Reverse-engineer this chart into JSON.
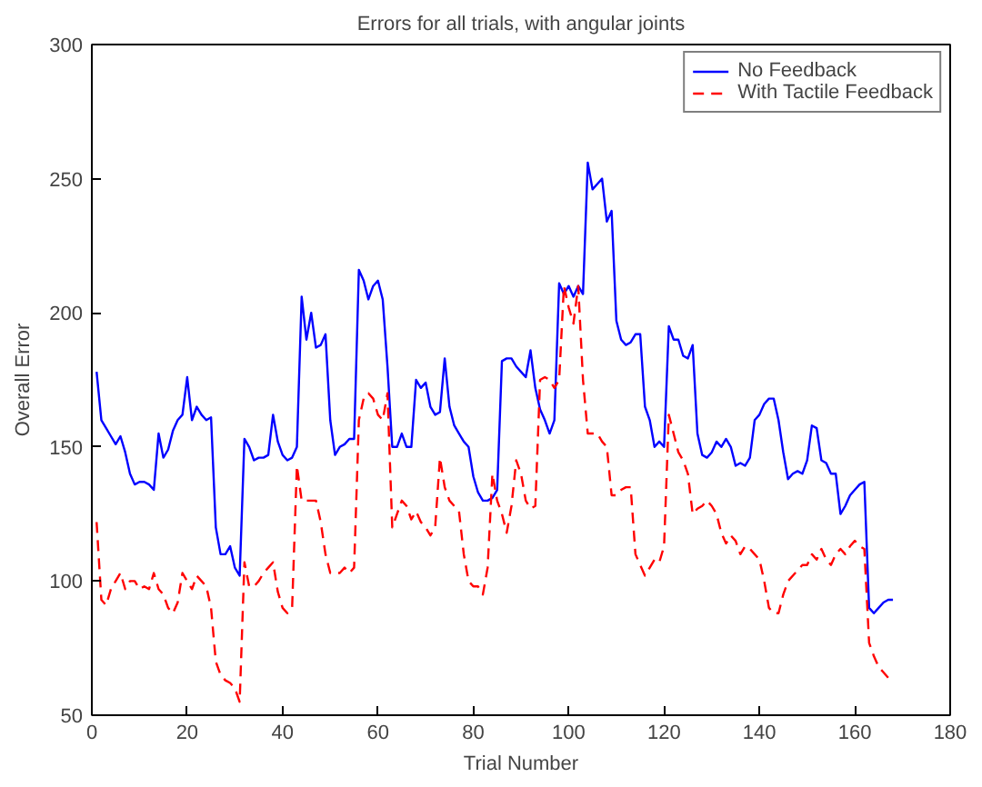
{
  "chart_data": {
    "type": "line",
    "title": "Errors for all trials, with angular joints",
    "xlabel": "Trial Number",
    "ylabel": "Overall Error",
    "x": [
      1,
      2,
      3,
      4,
      5,
      6,
      7,
      8,
      9,
      10,
      11,
      12,
      13,
      14,
      15,
      16,
      17,
      18,
      19,
      20,
      21,
      22,
      23,
      24,
      25,
      26,
      27,
      28,
      29,
      30,
      31,
      32,
      33,
      34,
      35,
      36,
      37,
      38,
      39,
      40,
      41,
      42,
      43,
      44,
      45,
      46,
      47,
      48,
      49,
      50,
      51,
      52,
      53,
      54,
      55,
      56,
      57,
      58,
      59,
      60,
      61,
      62,
      63,
      64,
      65,
      66,
      67,
      68,
      69,
      70,
      71,
      72,
      73,
      74,
      75,
      76,
      77,
      78,
      79,
      80,
      81,
      82,
      83,
      84,
      85,
      86,
      87,
      88,
      89,
      90,
      91,
      92,
      93,
      94,
      95,
      96,
      97,
      98,
      99,
      100,
      101,
      102,
      103,
      104,
      105,
      106,
      107,
      108,
      109,
      110,
      111,
      112,
      113,
      114,
      115,
      116,
      117,
      118,
      119,
      120,
      121,
      122,
      123,
      124,
      125,
      126,
      127,
      128,
      129,
      130,
      131,
      132,
      133,
      134,
      135,
      136,
      137,
      138,
      139,
      140,
      141,
      142,
      143,
      144,
      145,
      146,
      147,
      148,
      149,
      150,
      151,
      152,
      153,
      154,
      155,
      156,
      157,
      158,
      159,
      160,
      161,
      162,
      163,
      164,
      165,
      166,
      167,
      168
    ],
    "series": [
      {
        "name": "No Feedback",
        "color": "#0000ff",
        "line_style": "solid",
        "values": [
          178,
          160,
          157,
          154,
          151,
          154,
          148,
          140,
          136,
          137,
          137,
          136,
          134,
          155,
          146,
          149,
          156,
          160,
          162,
          176,
          160,
          165,
          162,
          160,
          161,
          120,
          110,
          110,
          113,
          105,
          102,
          153,
          150,
          145,
          146,
          146,
          147,
          162,
          152,
          147,
          145,
          146,
          150,
          206,
          190,
          200,
          187,
          188,
          192,
          160,
          147,
          150,
          151,
          153,
          153,
          216,
          212,
          205,
          210,
          212,
          205,
          180,
          150,
          150,
          155,
          150,
          150,
          175,
          172,
          174,
          165,
          162,
          163,
          183,
          165,
          158,
          155,
          152,
          150,
          139,
          133,
          130,
          130,
          131,
          134,
          182,
          183,
          183,
          180,
          178,
          176,
          186,
          172,
          164,
          160,
          155,
          160,
          211,
          207,
          210,
          206,
          210,
          207,
          256,
          246,
          248,
          250,
          234,
          238,
          197,
          190,
          188,
          189,
          192,
          192,
          165,
          160,
          150,
          152,
          150,
          195,
          190,
          190,
          184,
          183,
          188,
          155,
          147,
          146,
          148,
          152,
          150,
          153,
          150,
          143,
          144,
          143,
          146,
          160,
          162,
          166,
          168,
          168,
          160,
          148,
          138,
          140,
          141,
          140,
          145,
          158,
          157,
          145,
          144,
          140,
          140,
          125,
          128,
          132,
          134,
          136,
          137,
          90,
          88,
          90,
          92,
          93,
          93
        ]
      },
      {
        "name": "With Tactile Feedback",
        "color": "#ff0000",
        "line_style": "dashed",
        "values": [
          122,
          93,
          91,
          97,
          100,
          103,
          97,
          100,
          100,
          97,
          98,
          97,
          103,
          97,
          95,
          90,
          88,
          92,
          103,
          100,
          97,
          102,
          100,
          98,
          90,
          70,
          65,
          63,
          62,
          60,
          55,
          107,
          98,
          98,
          100,
          103,
          105,
          107,
          96,
          90,
          88,
          90,
          143,
          130,
          130,
          130,
          130,
          122,
          110,
          103,
          103,
          103,
          105,
          103,
          105,
          160,
          168,
          170,
          168,
          162,
          160,
          170,
          120,
          125,
          130,
          128,
          123,
          126,
          122,
          120,
          117,
          120,
          146,
          135,
          130,
          128,
          126,
          110,
          100,
          98,
          98,
          95,
          105,
          140,
          130,
          125,
          118,
          128,
          145,
          140,
          130,
          127,
          128,
          175,
          176,
          175,
          172,
          175,
          210,
          202,
          196,
          210,
          175,
          155,
          155,
          155,
          152,
          150,
          132,
          132,
          134,
          135,
          135,
          110,
          106,
          102,
          105,
          108,
          107,
          113,
          162,
          155,
          148,
          145,
          140,
          125,
          127,
          128,
          130,
          128,
          125,
          118,
          114,
          117,
          115,
          110,
          113,
          112,
          110,
          108,
          100,
          90,
          88,
          88,
          95,
          100,
          102,
          104,
          106,
          106,
          110,
          108,
          112,
          108,
          106,
          110,
          112,
          110,
          113,
          115,
          113,
          112,
          77,
          72,
          68,
          66,
          64,
          null
        ]
      }
    ],
    "xlim": [
      0,
      180
    ],
    "ylim": [
      50,
      300
    ],
    "xticks": [
      0,
      20,
      40,
      60,
      80,
      100,
      120,
      140,
      160,
      180
    ],
    "yticks": [
      50,
      100,
      150,
      200,
      250,
      300
    ],
    "grid": false,
    "legend": "top right",
    "marker": "none"
  }
}
